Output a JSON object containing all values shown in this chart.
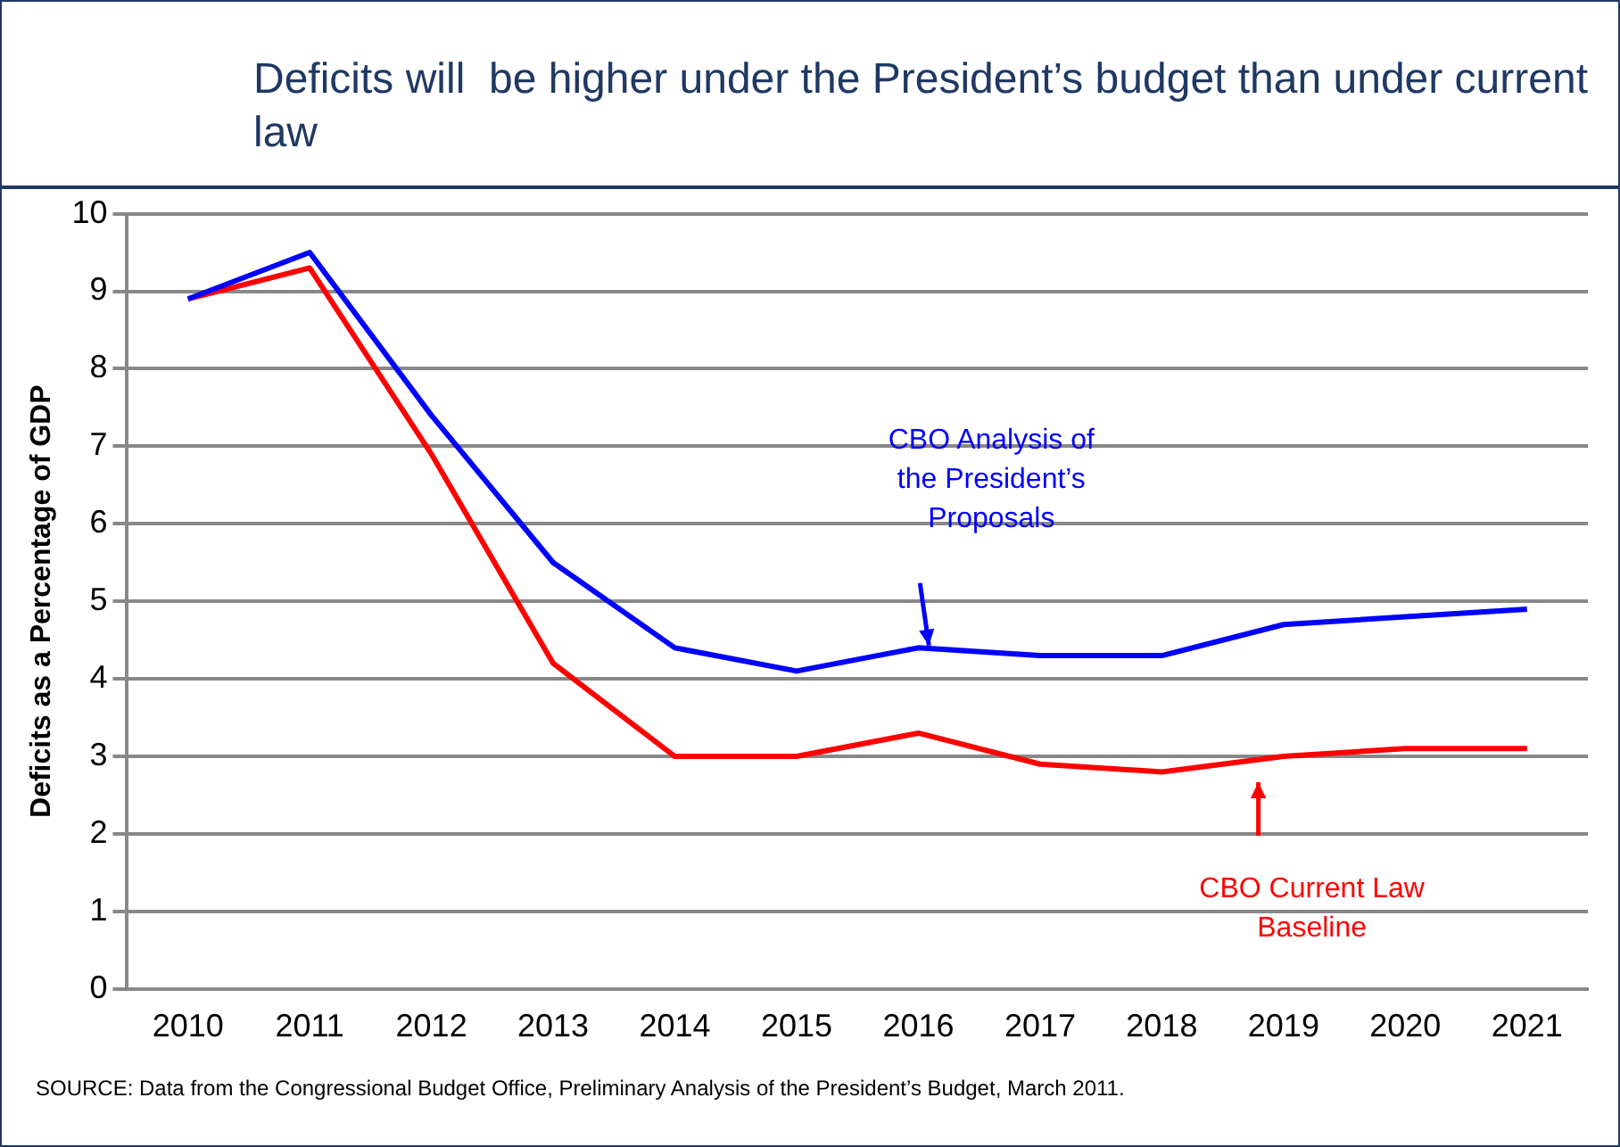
{
  "chart_data": {
    "type": "line",
    "title": "Deficits will  be higher under the President’s budget than under current law",
    "ylabel": "Deficits as a Percentage of GDP",
    "categories": [
      "2010",
      "2011",
      "2012",
      "2013",
      "2014",
      "2015",
      "2016",
      "2017",
      "2018",
      "2019",
      "2020",
      "2021"
    ],
    "series": [
      {
        "color": "#0000ff",
        "values": [
          8.9,
          9.5,
          7.4,
          5.5,
          4.4,
          4.1,
          4.4,
          4.3,
          4.3,
          4.7,
          4.8,
          4.9
        ]
      },
      {
        "color": "#ff0000",
        "values": [
          8.9,
          9.3,
          6.9,
          4.2,
          3.0,
          3.0,
          3.3,
          2.9,
          2.8,
          3.0,
          3.1,
          3.1
        ]
      }
    ],
    "ylim": [
      0,
      10
    ],
    "yticks": [
      0,
      1,
      2,
      3,
      4,
      5,
      6,
      7,
      8,
      9,
      10
    ],
    "grid": "y",
    "legend": false,
    "marker": "none",
    "line_style": "solid",
    "annotations": [
      "CBO Analysis of the President’s Proposals",
      "CBO Current Law Baseline",
      "SOURCE: Data from the Congressional Budget Office, Preliminary Analysis of  the President’s Budget, March 2011."
    ]
  }
}
